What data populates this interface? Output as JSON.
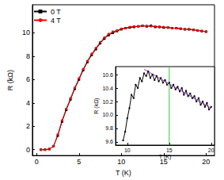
{
  "chart_data": [
    {
      "type": "line",
      "x_label": "T (K)",
      "y_label": "R (kΩ)",
      "xlim": [
        -0.5,
        21
      ],
      "ylim": [
        -0.5,
        12.4
      ],
      "xticks": [
        0,
        5,
        10,
        15,
        20
      ],
      "yticks": [
        0,
        2,
        4,
        6,
        8,
        10
      ],
      "grid": false,
      "legend": "upper left",
      "x": [
        0.5,
        1,
        1.5,
        2,
        2.5,
        3,
        3.5,
        4,
        4.5,
        5,
        5.5,
        6,
        6.5,
        7,
        7.5,
        8,
        8.5,
        9,
        9.5,
        10,
        10.5,
        11,
        11.5,
        12,
        12.5,
        13,
        13.5,
        14,
        14.5,
        15,
        15.5,
        16,
        16.5,
        17,
        17.5,
        18,
        18.5,
        19,
        19.5,
        20
      ],
      "series": [
        {
          "name": "0 T",
          "color": "#000000",
          "marker": "square",
          "values": [
            0,
            0,
            0.05,
            0.3,
            1.2,
            2.4,
            3.4,
            4.3,
            5.2,
            6.0,
            6.8,
            7.5,
            8.1,
            8.6,
            9.1,
            9.5,
            9.8,
            10.0,
            10.15,
            10.3,
            10.4,
            10.45,
            10.5,
            10.55,
            10.6,
            10.55,
            10.6,
            10.5,
            10.5,
            10.45,
            10.45,
            10.4,
            10.4,
            10.35,
            10.3,
            10.3,
            10.25,
            10.2,
            10.15,
            10.1
          ]
        },
        {
          "name": "4 T",
          "color": "#ff0000",
          "marker": "circle",
          "values": [
            0,
            0,
            0.05,
            0.3,
            1.3,
            2.5,
            3.5,
            4.4,
            5.3,
            6.1,
            6.9,
            7.6,
            8.2,
            8.7,
            9.2,
            9.6,
            9.9,
            10.1,
            10.2,
            10.35,
            10.4,
            10.5,
            10.55,
            10.55,
            10.6,
            10.6,
            10.55,
            10.55,
            10.5,
            10.5,
            10.45,
            10.4,
            10.4,
            10.35,
            10.3,
            10.3,
            10.25,
            10.2,
            10.15,
            10.1
          ]
        }
      ]
    },
    {
      "type": "line",
      "x_label": "T (K)",
      "y_label": "R (kΩ)",
      "xlim": [
        8.6,
        20.4
      ],
      "ylim": [
        9.55,
        10.72
      ],
      "xticks": [
        10,
        15,
        20
      ],
      "yticks": [
        9.6,
        9.8,
        {
          "value": 10,
          "label": "10.0"
        },
        10.2,
        10.4,
        10.6
      ],
      "grid": false,
      "series": [
        {
          "color": "#000000",
          "marker": "square",
          "x": [
            9.5,
            9.75,
            10,
            10.25,
            10.5,
            10.75,
            11,
            11.25,
            11.5,
            11.75,
            12,
            12.25,
            12.5,
            12.75,
            13,
            13.25,
            13.5,
            13.75,
            14,
            14.25,
            14.5,
            14.75,
            15,
            15.25,
            15.5,
            15.75,
            16,
            16.25,
            16.5,
            16.75,
            17,
            17.25,
            17.5,
            17.75,
            18,
            18.25,
            18.5,
            18.75,
            19,
            19.25,
            19.5,
            19.75,
            20
          ],
          "values": [
            9.62,
            9.75,
            9.95,
            10.1,
            10.3,
            10.25,
            10.45,
            10.4,
            10.55,
            10.5,
            10.62,
            10.58,
            10.65,
            10.55,
            10.6,
            10.52,
            10.58,
            10.5,
            10.55,
            10.48,
            10.52,
            10.45,
            10.48,
            10.4,
            10.45,
            10.38,
            10.42,
            10.35,
            10.4,
            10.3,
            10.36,
            10.28,
            10.32,
            10.25,
            10.28,
            10.2,
            10.25,
            10.15,
            10.2,
            10.12,
            10.18,
            10.08,
            10.12
          ]
        },
        {
          "color": "#9933cc",
          "marker": "none",
          "x": [
            12,
            20
          ],
          "values": [
            10.68,
            10.1
          ]
        },
        {
          "color": "#33cc33",
          "marker": "none",
          "x": [
            15,
            15
          ],
          "values": [
            9.55,
            10.72
          ]
        }
      ]
    }
  ]
}
